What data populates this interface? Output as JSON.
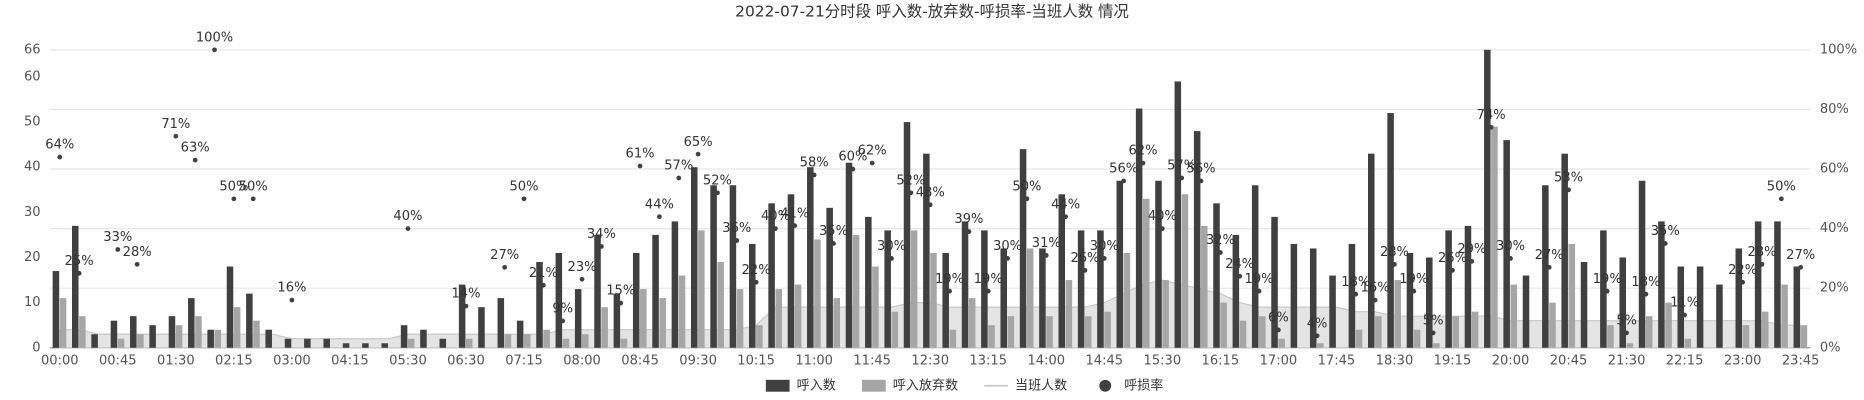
{
  "chart_data": {
    "type": "bar",
    "title": "2022-07-21分时段 呼入数-放弃数-呼损率-当班人数 情况",
    "categories": [
      "00:00",
      null,
      null,
      "00:45",
      null,
      null,
      "01:30",
      null,
      null,
      "02:15",
      null,
      null,
      "03:00",
      null,
      null,
      "04:15",
      null,
      null,
      "05:30",
      null,
      null,
      "06:30",
      null,
      null,
      "07:15",
      null,
      null,
      "08:00",
      null,
      null,
      "08:45",
      null,
      null,
      "09:30",
      null,
      null,
      "10:15",
      null,
      null,
      "11:00",
      null,
      null,
      "11:45",
      null,
      null,
      "12:30",
      null,
      null,
      "13:15",
      null,
      null,
      "14:00",
      null,
      null,
      "14:45",
      null,
      null,
      "15:30",
      null,
      null,
      "16:15",
      null,
      null,
      "17:00",
      null,
      null,
      "17:45",
      null,
      null,
      "18:30",
      null,
      null,
      "19:15",
      null,
      null,
      "20:00",
      null,
      null,
      "20:45",
      null,
      null,
      "21:30",
      null,
      null,
      "22:15",
      null,
      null,
      "23:00",
      null,
      null,
      "23:45"
    ],
    "series": [
      {
        "name": "呼入数",
        "type": "bar",
        "color": "#404040",
        "values": [
          17,
          27,
          3,
          6,
          7,
          5,
          7,
          11,
          4,
          18,
          12,
          4,
          2,
          2,
          2,
          1,
          1,
          1,
          5,
          4,
          2,
          14,
          9,
          11,
          6,
          19,
          21,
          13,
          25,
          12,
          21,
          25,
          28,
          40,
          36,
          36,
          23,
          32,
          34,
          40,
          31,
          41,
          29,
          26,
          50,
          43,
          21,
          28,
          26,
          22,
          44,
          22,
          34,
          26,
          26,
          37,
          53,
          37,
          59,
          48,
          32,
          25,
          36,
          29,
          23,
          22,
          16,
          23,
          43,
          52,
          21,
          20,
          26,
          27,
          66,
          46,
          16,
          36,
          43,
          19,
          26,
          20,
          37,
          28,
          18,
          18,
          14,
          22,
          28,
          28,
          18
        ]
      },
      {
        "name": "呼入放弃数",
        "type": "bar",
        "color": "#a6a6a6",
        "values": [
          11,
          7,
          0,
          2,
          3,
          0,
          5,
          7,
          4,
          9,
          6,
          0,
          0,
          0,
          0,
          0,
          0,
          0,
          2,
          0,
          0,
          2,
          0,
          3,
          3,
          4,
          2,
          3,
          9,
          2,
          13,
          11,
          16,
          26,
          19,
          13,
          5,
          13,
          14,
          24,
          11,
          25,
          18,
          8,
          26,
          21,
          4,
          11,
          5,
          7,
          22,
          7,
          15,
          7,
          8,
          21,
          33,
          15,
          34,
          27,
          10,
          6,
          7,
          2,
          0,
          1,
          0,
          4,
          7,
          15,
          4,
          1,
          7,
          8,
          49,
          14,
          0,
          10,
          23,
          0,
          5,
          1,
          7,
          10,
          2,
          0,
          0,
          5,
          8,
          14,
          5
        ]
      },
      {
        "name": "当班人数",
        "type": "area",
        "color": "#c8c8c8",
        "values": [
          4,
          4,
          3,
          3,
          3,
          3,
          3,
          3,
          3,
          3,
          3,
          3,
          2,
          2,
          2,
          2,
          2,
          2,
          3,
          3,
          3,
          3,
          3,
          3,
          3,
          3,
          4,
          4,
          4,
          4,
          4,
          4,
          4,
          4,
          4,
          4,
          5,
          9,
          9,
          9,
          9,
          9,
          9,
          9,
          10,
          10,
          9,
          9,
          9,
          9,
          9,
          9,
          9,
          9,
          10,
          12,
          14,
          15,
          14,
          13,
          12,
          10,
          9,
          9,
          9,
          9,
          9,
          8,
          8,
          7,
          7,
          7,
          7,
          7,
          7,
          6,
          6,
          6,
          6,
          6,
          6,
          6,
          6,
          6,
          6,
          6,
          6,
          6,
          6,
          5,
          5
        ]
      },
      {
        "name": "呼损率",
        "type": "scatter",
        "axis": "y2",
        "color": "#404040",
        "values": [
          64,
          25,
          null,
          33,
          28,
          null,
          71,
          63,
          100,
          50,
          50,
          null,
          16,
          null,
          null,
          null,
          null,
          null,
          40,
          null,
          null,
          14,
          null,
          27,
          50,
          21,
          9,
          23,
          34,
          15,
          61,
          44,
          57,
          65,
          52,
          36,
          22,
          40,
          41,
          58,
          35,
          60,
          62,
          30,
          52,
          48,
          19,
          39,
          19,
          30,
          50,
          31,
          44,
          26,
          30,
          56,
          62,
          40,
          57,
          56,
          32,
          24,
          19,
          6,
          null,
          4,
          null,
          18,
          16,
          28,
          19,
          5,
          26,
          29,
          74,
          30,
          null,
          27,
          53,
          null,
          19,
          5,
          18,
          35,
          11,
          null,
          null,
          22,
          28,
          50,
          27
        ],
        "value_labels": [
          "64%",
          "25%",
          null,
          "33%",
          "28%",
          null,
          "71%",
          "63%",
          "100%",
          "50%",
          "50%",
          null,
          "16%",
          null,
          null,
          null,
          null,
          null,
          "40%",
          null,
          null,
          "14%",
          null,
          "27%",
          "50%",
          "21%",
          "9%",
          "23%",
          "34%",
          "15%",
          "61%",
          "44%",
          "57%",
          "65%",
          "52%",
          "36%",
          "22%",
          "40%",
          "41%",
          "58%",
          "35%",
          "60%",
          "62%",
          "30%",
          "52%",
          "48%",
          "19%",
          "39%",
          "19%",
          "30%",
          "50%",
          "31%",
          "44%",
          "26%",
          "30%",
          "56%",
          "62%",
          "40%",
          "57%",
          "56%",
          "32%",
          "24%",
          "19%",
          "6%",
          null,
          "4%",
          null,
          "18%",
          "16%",
          "28%",
          "19%",
          "5%",
          "26%",
          "29%",
          "74%",
          "30%",
          null,
          "27%",
          "53%",
          null,
          "19%",
          "5%",
          "18%",
          "35%",
          "11%",
          null,
          null,
          "22%",
          "28%",
          "50%",
          "27%"
        ]
      }
    ],
    "ylim": [
      0,
      66
    ],
    "yticks": [
      0,
      10,
      20,
      30,
      40,
      50,
      60,
      66
    ],
    "y2lim": [
      0,
      100
    ],
    "y2ticks": [
      {
        "value": 0,
        "label": "0%"
      },
      {
        "value": 20,
        "label": "20%"
      },
      {
        "value": 40,
        "label": "40%"
      },
      {
        "value": 60,
        "label": "60%"
      },
      {
        "value": 80,
        "label": "80%"
      },
      {
        "value": 100,
        "label": "100%"
      }
    ],
    "grid": true,
    "legend": "bottom"
  }
}
